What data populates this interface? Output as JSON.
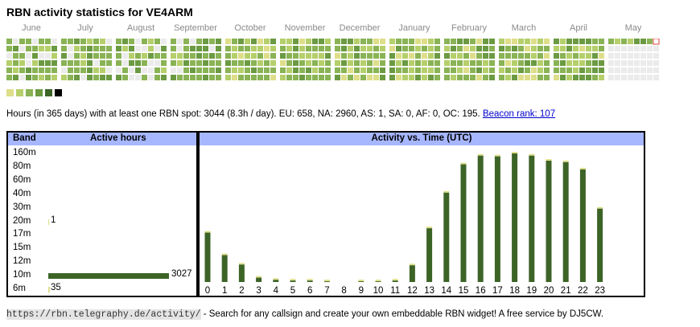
{
  "title": "RBN activity statistics for VE4ARM",
  "months": [
    "June",
    "July",
    "August",
    "September",
    "October",
    "November",
    "December",
    "January",
    "February",
    "March",
    "April",
    "May"
  ],
  "summary_text": "Hours (in 365 days) with at least one RBN spot: 3044 (8.3h / day). EU: 658, NA: 2960, AS: 1, SA: 0, AF: 0, OC: 195.",
  "beacon_rank_link": "Beacon rank: 107",
  "legend_colors": [
    "#dede8a",
    "#b5cf6b",
    "#8ab355",
    "#6b9a42",
    "#3d6427",
    "#000000"
  ],
  "band_table": {
    "header_band": "Band",
    "header_active": "Active hours",
    "rows": [
      {
        "band": "160m",
        "hours": null
      },
      {
        "band": "80m",
        "hours": null
      },
      {
        "band": "60m",
        "hours": null
      },
      {
        "band": "40m",
        "hours": null
      },
      {
        "band": "30m",
        "hours": null
      },
      {
        "band": "20m",
        "hours": 1
      },
      {
        "band": "17m",
        "hours": null
      },
      {
        "band": "15m",
        "hours": null
      },
      {
        "band": "12m",
        "hours": null
      },
      {
        "band": "10m",
        "hours": 3027
      },
      {
        "band": "6m",
        "hours": 35
      }
    ]
  },
  "activity_header": "Activity vs. Time (UTC)",
  "chart_data": {
    "type": "bar",
    "title": "Activity vs. Time (UTC)",
    "categories": [
      "0",
      "1",
      "2",
      "3",
      "4",
      "5",
      "6",
      "7",
      "8",
      "9",
      "10",
      "11",
      "12",
      "13",
      "14",
      "15",
      "16",
      "17",
      "18",
      "19",
      "20",
      "21",
      "22",
      "23"
    ],
    "values": [
      68,
      37,
      24,
      6,
      3,
      2,
      2,
      1,
      0,
      1,
      1,
      2,
      23,
      74,
      123,
      162,
      174,
      173,
      177,
      174,
      167,
      165,
      155,
      101
    ],
    "series_colors": {
      "main": "#3d6427",
      "cap": "#dede8a"
    }
  },
  "footer": {
    "url": "https://rbn.telegraphy.de/activity/",
    "text": " - Search for any callsign and create your own embeddable RBN widget! A free service by DJ5CW."
  }
}
